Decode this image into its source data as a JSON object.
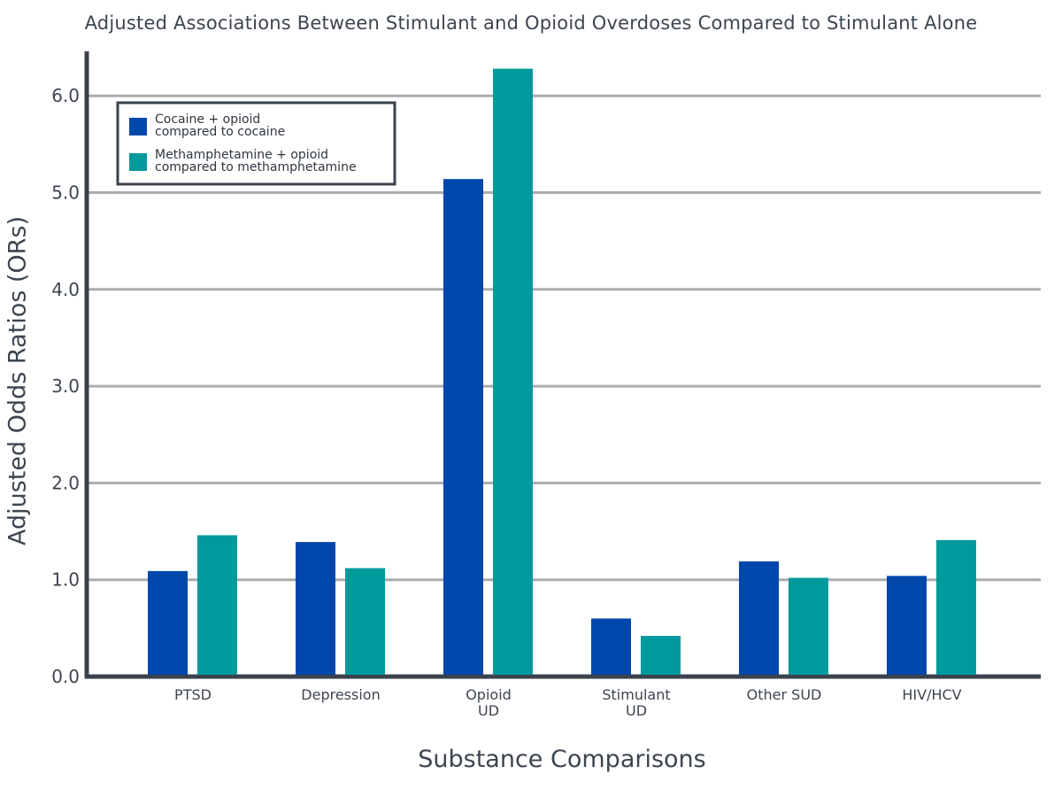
{
  "chart_data": {
    "type": "bar",
    "title": "Adjusted Associations Between Stimulant and Opioid Overdoses Compared to Stimulant Alone",
    "xlabel": "Substance Comparisons",
    "ylabel": "Adjusted Odds Ratios (ORs)",
    "ylim": [
      0,
      6.5
    ],
    "yticks": [
      "0.0",
      "1.0",
      "2.0",
      "3.0",
      "4.0",
      "5.0",
      "6.0"
    ],
    "grid": true,
    "legend_position": "top-left",
    "categories": [
      [
        "PTSD"
      ],
      [
        "Depression"
      ],
      [
        "Opioid",
        "UD"
      ],
      [
        "Stimulant",
        "UD"
      ],
      [
        "Other SUD"
      ],
      [
        "HIV/HCV"
      ]
    ],
    "series": [
      {
        "name_lines": [
          "Cocaine + opioid",
          "compared to cocaine"
        ],
        "color": "#0047ab",
        "values": [
          1.09,
          1.39,
          5.14,
          0.6,
          1.19,
          1.04
        ]
      },
      {
        "name_lines": [
          "Methamphetamine + opioid",
          "compared to methamphetamine"
        ],
        "color": "#00999c",
        "values": [
          1.46,
          1.12,
          6.28,
          0.42,
          1.02,
          1.41
        ]
      }
    ]
  }
}
